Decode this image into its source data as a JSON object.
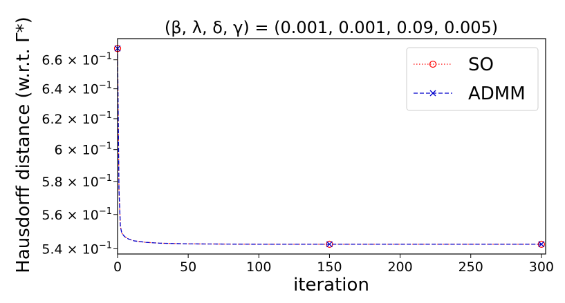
{
  "chart_data": {
    "type": "line",
    "title": "(β, λ, δ, γ) = (0.001, 0.001, 0.09, 0.005)",
    "xlabel": "iteration",
    "ylabel": "Hausdorff distance (w.r.t. Γ*)",
    "xlim": [
      0,
      303
    ],
    "ylim": [
      0.537,
      0.675
    ],
    "y_scale": "log",
    "xticks": [
      0,
      50,
      100,
      150,
      200,
      250,
      300
    ],
    "yticks": [
      {
        "value": 0.54,
        "mantissa": "5.4",
        "exponent": "−1"
      },
      {
        "value": 0.56,
        "mantissa": "5.6",
        "exponent": "−1"
      },
      {
        "value": 0.58,
        "mantissa": "5.8",
        "exponent": "−1"
      },
      {
        "value": 0.6,
        "mantissa": "6",
        "exponent": "−1"
      },
      {
        "value": 0.62,
        "mantissa": "6.2",
        "exponent": "−1"
      },
      {
        "value": 0.64,
        "mantissa": "6.4",
        "exponent": "−1"
      },
      {
        "value": 0.66,
        "mantissa": "6.6",
        "exponent": "−1"
      }
    ],
    "grid": false,
    "legend_position": "top-right",
    "series": [
      {
        "name": "SO",
        "color": "#ff0000",
        "line_style": "dotted",
        "marker": "circle",
        "x": [
          0,
          1,
          2,
          3,
          5,
          8,
          12,
          20,
          30,
          50,
          75,
          100,
          150,
          200,
          250,
          300
        ],
        "y": [
          0.668,
          0.575,
          0.553,
          0.549,
          0.547,
          0.5455,
          0.5445,
          0.5437,
          0.5432,
          0.5428,
          0.5427,
          0.5426,
          0.5426,
          0.5426,
          0.5426,
          0.5426
        ],
        "marker_x": [
          0,
          150,
          300
        ]
      },
      {
        "name": "ADMM",
        "color": "#0000cc",
        "line_style": "dashed",
        "marker": "x",
        "x": [
          0,
          1,
          2,
          3,
          5,
          8,
          12,
          20,
          30,
          50,
          75,
          100,
          150,
          200,
          250,
          300
        ],
        "y": [
          0.668,
          0.575,
          0.553,
          0.549,
          0.547,
          0.5455,
          0.5445,
          0.5437,
          0.5432,
          0.5428,
          0.5427,
          0.5426,
          0.5426,
          0.5426,
          0.5426,
          0.5426
        ],
        "marker_x": [
          0,
          150,
          300
        ]
      }
    ]
  }
}
